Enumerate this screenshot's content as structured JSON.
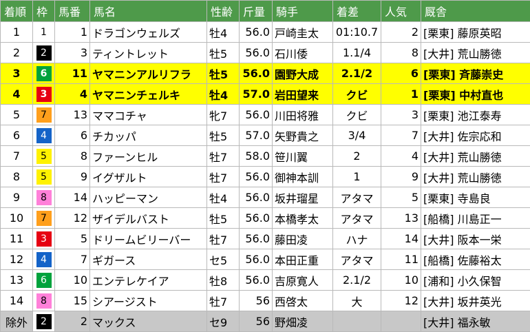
{
  "headers": [
    "着順",
    "枠",
    "馬番",
    "馬名",
    "性齢",
    "斤量",
    "騎手",
    "着差",
    "人気",
    "厩舎"
  ],
  "waku_colors": {
    "1": {
      "bg": "#ffffff",
      "fg": "#000000"
    },
    "2": {
      "bg": "#000000",
      "fg": "#ffffff"
    },
    "3": {
      "bg": "#e60012",
      "fg": "#ffffff"
    },
    "4": {
      "bg": "#1463c8",
      "fg": "#ffffff"
    },
    "5": {
      "bg": "#fff200",
      "fg": "#000000"
    },
    "6": {
      "bg": "#00a23c",
      "fg": "#ffffff"
    },
    "7": {
      "bg": "#ff9f1c",
      "fg": "#000000"
    },
    "8": {
      "bg": "#ff80d9",
      "fg": "#000000"
    }
  },
  "highlight_color": "#ffff00",
  "excluded_color": "#c8c8c8",
  "rows": [
    {
      "rank": "1",
      "waku": "1",
      "num": "1",
      "name": "ドラゴンウェルズ",
      "sexage": "牡4",
      "weight": "56.0",
      "jockey": "戸崎圭太",
      "margin": "01:10.7",
      "pop": "2",
      "stable": "[栗東] 藤原英昭",
      "style": "normal"
    },
    {
      "rank": "2",
      "waku": "2",
      "num": "3",
      "name": "ティントレット",
      "sexage": "牡5",
      "weight": "56.0",
      "jockey": "石川倭",
      "margin": "1.1/4",
      "pop": "8",
      "stable": "[大井] 荒山勝徳",
      "style": "normal"
    },
    {
      "rank": "3",
      "waku": "6",
      "num": "11",
      "name": "ヤマニンアルリフラ",
      "sexage": "牡5",
      "weight": "56.0",
      "jockey": "園野大成",
      "margin": "2.1/2",
      "pop": "6",
      "stable": "[栗東] 斉藤崇史",
      "style": "highlight"
    },
    {
      "rank": "4",
      "waku": "3",
      "num": "4",
      "name": "ヤマニンチェルキ",
      "sexage": "牡4",
      "weight": "57.0",
      "jockey": "岩田望来",
      "margin": "クビ",
      "pop": "1",
      "stable": "[栗東] 中村直也",
      "style": "highlight"
    },
    {
      "rank": "5",
      "waku": "7",
      "num": "13",
      "name": "ママコチャ",
      "sexage": "牝7",
      "weight": "56.0",
      "jockey": "川田将雅",
      "margin": "クビ",
      "pop": "3",
      "stable": "[栗東] 池江泰寿",
      "style": "normal"
    },
    {
      "rank": "6",
      "waku": "4",
      "num": "6",
      "name": "チカッパ",
      "sexage": "牡5",
      "weight": "57.0",
      "jockey": "矢野貴之",
      "margin": "3/4",
      "pop": "7",
      "stable": "[大井] 佐宗応和",
      "style": "normal"
    },
    {
      "rank": "7",
      "waku": "5",
      "num": "8",
      "name": "ファーンヒル",
      "sexage": "牡7",
      "weight": "58.0",
      "jockey": "笹川翼",
      "margin": "2",
      "pop": "4",
      "stable": "[大井] 荒山勝徳",
      "style": "normal"
    },
    {
      "rank": "8",
      "waku": "5",
      "num": "9",
      "name": "イグザルト",
      "sexage": "牡7",
      "weight": "56.0",
      "jockey": "御神本訓",
      "margin": "1",
      "pop": "9",
      "stable": "[大井] 荒山勝徳",
      "style": "normal"
    },
    {
      "rank": "9",
      "waku": "8",
      "num": "14",
      "name": "ハッピーマン",
      "sexage": "牡4",
      "weight": "56.0",
      "jockey": "坂井瑠星",
      "margin": "アタマ",
      "pop": "5",
      "stable": "[栗東] 寺島良",
      "style": "normal"
    },
    {
      "rank": "10",
      "waku": "7",
      "num": "12",
      "name": "ザイデルバスト",
      "sexage": "牡5",
      "weight": "56.0",
      "jockey": "本橋孝太",
      "margin": "アタマ",
      "pop": "13",
      "stable": "[船橋] 川島正一",
      "style": "normal"
    },
    {
      "rank": "11",
      "waku": "3",
      "num": "5",
      "name": "ドリームビリーバー",
      "sexage": "牡7",
      "weight": "56.0",
      "jockey": "藤田凌",
      "margin": "ハナ",
      "pop": "14",
      "stable": "[大井] 阪本一栄",
      "style": "normal"
    },
    {
      "rank": "12",
      "waku": "4",
      "num": "7",
      "name": "ギガース",
      "sexage": "セ5",
      "weight": "56.0",
      "jockey": "本田正重",
      "margin": "アタマ",
      "pop": "11",
      "stable": "[船橋] 佐藤裕太",
      "style": "normal"
    },
    {
      "rank": "13",
      "waku": "6",
      "num": "10",
      "name": "エンテレケイア",
      "sexage": "牡8",
      "weight": "56.0",
      "jockey": "吉原寛人",
      "margin": "2.1/2",
      "pop": "10",
      "stable": "[浦和] 小久保智",
      "style": "normal"
    },
    {
      "rank": "14",
      "waku": "8",
      "num": "15",
      "name": "シアージスト",
      "sexage": "牡7",
      "weight": "56",
      "jockey": "西啓太",
      "margin": "大",
      "pop": "12",
      "stable": "[大井] 坂井英光",
      "style": "normal"
    },
    {
      "rank": "除外",
      "waku": "2",
      "num": "2",
      "name": "マックス",
      "sexage": "セ9",
      "weight": "56",
      "jockey": "野畑凌",
      "margin": "",
      "pop": "",
      "stable": "[大井] 福永敏",
      "style": "excluded"
    }
  ]
}
